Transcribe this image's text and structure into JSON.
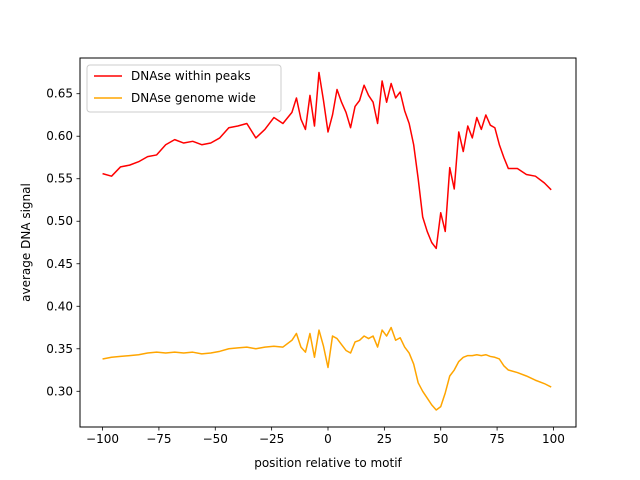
{
  "chart_data": {
    "type": "line",
    "title": "",
    "xlabel": "position relative to motif",
    "ylabel": "average DNA signal",
    "xlim": [
      -110,
      110
    ],
    "ylim": [
      0.258,
      0.692
    ],
    "xticks": [
      -100,
      -75,
      -50,
      -25,
      0,
      25,
      50,
      75,
      100
    ],
    "xtick_labels": [
      "−100",
      "−75",
      "−50",
      "−25",
      "0",
      "25",
      "50",
      "75",
      "100"
    ],
    "yticks": [
      0.3,
      0.35,
      0.4,
      0.45,
      0.5,
      0.55,
      0.6,
      0.65
    ],
    "ytick_labels": [
      "0.30",
      "0.35",
      "0.40",
      "0.45",
      "0.50",
      "0.55",
      "0.60",
      "0.65"
    ],
    "grid": false,
    "legend_position": "top-left",
    "x": [
      -100,
      -96,
      -92,
      -88,
      -84,
      -80,
      -76,
      -72,
      -68,
      -64,
      -60,
      -56,
      -52,
      -48,
      -44,
      -40,
      -36,
      -32,
      -28,
      -24,
      -20,
      -16,
      -14,
      -12,
      -10,
      -8,
      -6,
      -4,
      -2,
      0,
      2,
      4,
      6,
      8,
      10,
      12,
      14,
      16,
      18,
      20,
      22,
      24,
      26,
      28,
      30,
      32,
      34,
      36,
      38,
      40,
      42,
      44,
      46,
      48,
      50,
      52,
      54,
      56,
      58,
      60,
      62,
      64,
      66,
      68,
      70,
      72,
      74,
      76,
      78,
      80,
      84,
      88,
      92,
      96,
      99
    ],
    "series": [
      {
        "name": "DNAse within peaks",
        "color": "#ff0000",
        "values": [
          0.556,
          0.553,
          0.564,
          0.566,
          0.57,
          0.576,
          0.578,
          0.59,
          0.596,
          0.592,
          0.594,
          0.59,
          0.592,
          0.598,
          0.61,
          0.612,
          0.615,
          0.598,
          0.608,
          0.622,
          0.615,
          0.628,
          0.645,
          0.62,
          0.608,
          0.648,
          0.612,
          0.675,
          0.642,
          0.605,
          0.625,
          0.655,
          0.64,
          0.628,
          0.61,
          0.635,
          0.642,
          0.66,
          0.648,
          0.64,
          0.615,
          0.665,
          0.64,
          0.662,
          0.645,
          0.652,
          0.63,
          0.615,
          0.59,
          0.55,
          0.505,
          0.488,
          0.475,
          0.468,
          0.51,
          0.488,
          0.563,
          0.538,
          0.605,
          0.582,
          0.612,
          0.598,
          0.622,
          0.608,
          0.625,
          0.613,
          0.61,
          0.59,
          0.575,
          0.562,
          0.562,
          0.555,
          0.553,
          0.545,
          0.537
        ]
      },
      {
        "name": "DNAse genome wide",
        "color": "#ffa500",
        "values": [
          0.338,
          0.34,
          0.341,
          0.342,
          0.343,
          0.345,
          0.346,
          0.345,
          0.346,
          0.345,
          0.346,
          0.344,
          0.345,
          0.347,
          0.35,
          0.351,
          0.352,
          0.35,
          0.352,
          0.353,
          0.352,
          0.36,
          0.368,
          0.352,
          0.346,
          0.368,
          0.34,
          0.372,
          0.353,
          0.328,
          0.365,
          0.362,
          0.355,
          0.348,
          0.345,
          0.358,
          0.36,
          0.365,
          0.362,
          0.365,
          0.352,
          0.372,
          0.365,
          0.375,
          0.36,
          0.363,
          0.352,
          0.345,
          0.332,
          0.31,
          0.3,
          0.292,
          0.284,
          0.278,
          0.282,
          0.298,
          0.318,
          0.325,
          0.335,
          0.34,
          0.342,
          0.342,
          0.343,
          0.342,
          0.343,
          0.341,
          0.34,
          0.338,
          0.33,
          0.325,
          0.322,
          0.318,
          0.313,
          0.309,
          0.305
        ]
      }
    ]
  }
}
